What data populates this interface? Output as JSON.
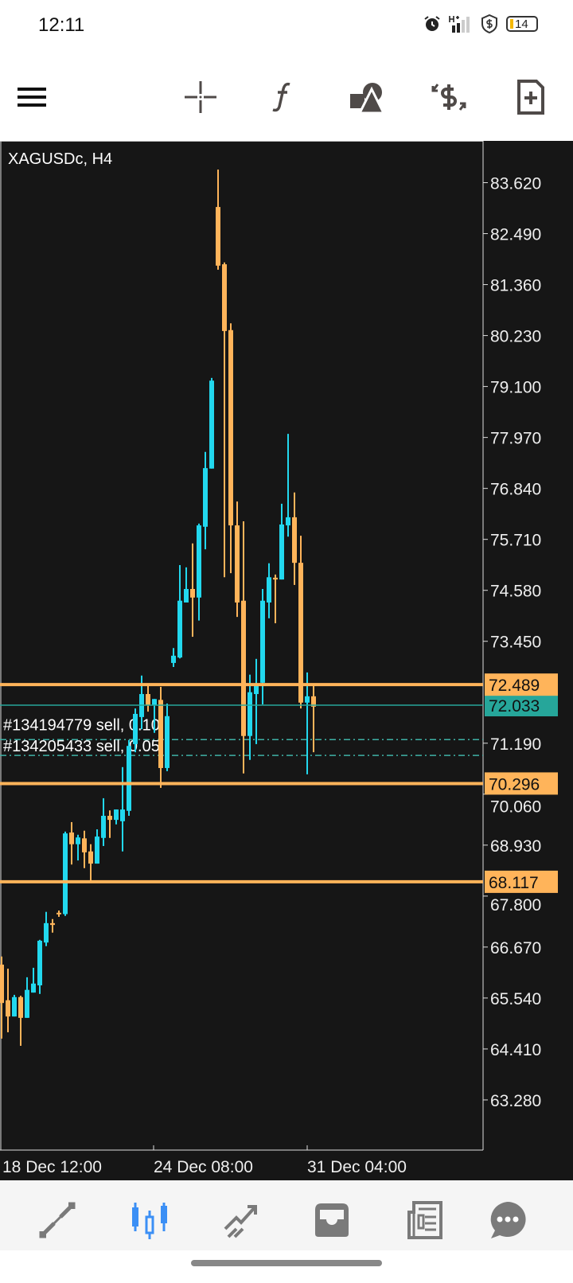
{
  "status_bar": {
    "time": "12:11",
    "battery": "14",
    "icons": [
      "alarm-icon",
      "signal-h-plus-icon",
      "shield-dollar-icon",
      "battery-icon"
    ]
  },
  "toolbar": {
    "icons": [
      "menu-icon",
      "crosshair-icon",
      "function-icon",
      "objects-icon",
      "trade-icon",
      "new-order-icon"
    ]
  },
  "chart": {
    "symbol_label": "XAGUSDc, H4",
    "colors": {
      "bull": "#22d8ee",
      "bear": "#ffb45a",
      "background": "#161616",
      "current": "#26a69a",
      "level": "#ffb45a"
    },
    "price_ticks": [
      "83.620",
      "82.490",
      "81.360",
      "80.230",
      "79.100",
      "77.970",
      "76.840",
      "75.710",
      "74.580",
      "73.450",
      "71.190",
      "70.060",
      "68.930",
      "67.800",
      "66.670",
      "65.540",
      "64.410",
      "63.280"
    ],
    "time_labels": [
      "18 Dec 12:00",
      "24 Dec 08:00",
      "31 Dec 04:00"
    ],
    "levels": [
      {
        "price": "72.489"
      },
      {
        "price": "70.296"
      },
      {
        "price": "68.117"
      }
    ],
    "current_price": "72.033",
    "orders": [
      {
        "label": "#134194779 sell, 0.10",
        "price": 71.27
      },
      {
        "label": "#134205433 sell, 0.05",
        "price": 70.92
      }
    ]
  },
  "chart_data": {
    "type": "candlestick",
    "title": "XAGUSDc, H4",
    "ylim": [
      62.7,
      84.5
    ],
    "candles": [
      [
        66.28,
        66.46,
        64.64,
        65.43
      ],
      [
        65.49,
        66.19,
        64.78,
        65.13
      ],
      [
        65.13,
        65.61,
        65.13,
        65.56
      ],
      [
        65.56,
        65.59,
        64.48,
        65.1
      ],
      [
        65.1,
        66.0,
        65.1,
        65.72
      ],
      [
        65.66,
        66.21,
        65.66,
        65.86
      ],
      [
        65.82,
        66.83,
        65.63,
        66.81
      ],
      [
        66.77,
        67.45,
        66.69,
        67.2
      ],
      [
        67.2,
        67.29,
        66.99,
        67.16
      ],
      [
        67.43,
        67.48,
        67.34,
        67.4
      ],
      [
        67.4,
        69.23,
        67.36,
        69.19
      ],
      [
        69.21,
        69.44,
        68.5,
        68.95
      ],
      [
        68.95,
        69.16,
        68.59,
        69.1
      ],
      [
        69.08,
        69.25,
        68.42,
        68.77
      ],
      [
        68.79,
        68.95,
        68.15,
        68.52
      ],
      [
        68.52,
        69.28,
        68.52,
        69.12
      ],
      [
        69.09,
        69.97,
        68.91,
        69.58
      ],
      [
        69.58,
        69.7,
        69.09,
        69.49
      ],
      [
        69.49,
        69.72,
        69.39,
        69.72
      ],
      [
        69.46,
        70.66,
        68.79,
        69.72
      ],
      [
        69.69,
        71.26,
        69.58,
        71.13
      ],
      [
        71.17,
        71.96,
        70.99,
        71.84
      ],
      [
        71.77,
        72.69,
        71.5,
        72.28
      ],
      [
        72.28,
        72.46,
        71.89,
        72.03
      ],
      [
        72.03,
        72.17,
        71.42,
        72.17
      ],
      [
        72.15,
        72.44,
        70.2,
        70.64
      ],
      [
        70.64,
        72.07,
        70.57,
        71.79
      ],
      [
        72.97,
        73.3,
        72.88,
        73.13
      ],
      [
        73.09,
        75.14,
        73.07,
        74.35
      ],
      [
        74.31,
        75.09,
        74.31,
        74.61
      ],
      [
        74.61,
        75.62,
        73.55,
        74.42
      ],
      [
        74.42,
        76.06,
        73.91,
        76.02
      ],
      [
        75.99,
        77.65,
        75.49,
        77.29
      ],
      [
        77.28,
        79.29,
        77.28,
        79.23
      ],
      [
        83.08,
        83.91,
        81.69,
        81.78
      ],
      [
        81.81,
        81.85,
        74.87,
        80.33
      ],
      [
        80.35,
        80.5,
        74.96,
        76.02
      ],
      [
        76.02,
        76.55,
        73.99,
        74.31
      ],
      [
        74.35,
        76.11,
        70.52,
        71.35
      ],
      [
        71.35,
        72.71,
        70.82,
        72.32
      ],
      [
        72.28,
        73.06,
        71.17,
        72.46
      ],
      [
        72.53,
        74.61,
        72.05,
        74.35
      ],
      [
        74.31,
        75.18,
        73.96,
        74.87
      ],
      [
        74.86,
        74.93,
        73.85,
        74.82
      ],
      [
        74.82,
        76.5,
        74.82,
        76.04
      ],
      [
        76.02,
        78.05,
        75.77,
        76.2
      ],
      [
        76.2,
        76.75,
        74.7,
        75.19
      ],
      [
        75.19,
        75.79,
        71.96,
        72.09
      ],
      [
        72.09,
        72.76,
        70.5,
        72.23
      ],
      [
        72.23,
        72.46,
        70.99,
        72.0
      ]
    ],
    "candle_format": [
      "open",
      "high",
      "low",
      "close"
    ]
  },
  "bottom_nav": {
    "items": [
      {
        "icon": "quotes-icon"
      },
      {
        "icon": "chart-icon",
        "active": true
      },
      {
        "icon": "trade-icon"
      },
      {
        "icon": "history-icon"
      },
      {
        "icon": "news-icon"
      },
      {
        "icon": "messages-icon"
      }
    ],
    "active_color": "#3b8ff5",
    "color": "#7a7a7a"
  }
}
